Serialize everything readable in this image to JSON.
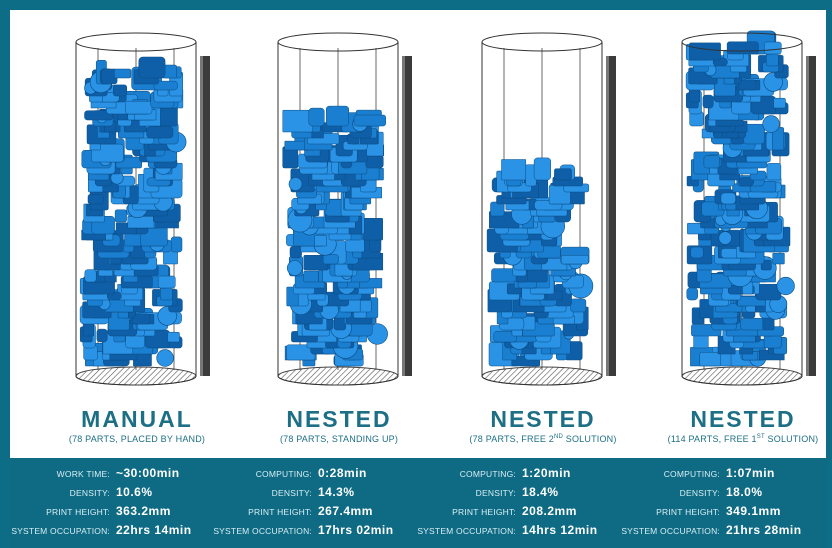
{
  "columns": [
    {
      "title": "MANUAL",
      "subtitle_main": "(78 PARTS, PLACED BY HAND)",
      "subtitle_sup": "",
      "subtitle_tail": "",
      "fill_level": 0.9,
      "stats": [
        {
          "label": "WORK TIME:",
          "value": "~30:00min"
        },
        {
          "label": "DENSITY:",
          "value": "10.6%"
        },
        {
          "label": "PRINT HEIGHT:",
          "value": "363.2mm"
        },
        {
          "label": "SYSTEM OCCUPATION:",
          "value": "22hrs 14min"
        }
      ]
    },
    {
      "title": "NESTED",
      "subtitle_main": "(78 PARTS, STANDING UP)",
      "subtitle_sup": "",
      "subtitle_tail": "",
      "fill_level": 0.76,
      "stats": [
        {
          "label": "COMPUTING:",
          "value": "0:28min"
        },
        {
          "label": "DENSITY:",
          "value": "14.3%"
        },
        {
          "label": "PRINT HEIGHT:",
          "value": "267.4mm"
        },
        {
          "label": "SYSTEM OCCUPATION:",
          "value": "17hrs 02min"
        }
      ]
    },
    {
      "title": "NESTED",
      "subtitle_main": "(78 PARTS, FREE 2",
      "subtitle_sup": "ND",
      "subtitle_tail": " SOLUTION)",
      "fill_level": 0.6,
      "stats": [
        {
          "label": "COMPUTING:",
          "value": "1:20min"
        },
        {
          "label": "DENSITY:",
          "value": "18.4%"
        },
        {
          "label": "PRINT HEIGHT:",
          "value": "208.2mm"
        },
        {
          "label": "SYSTEM OCCUPATION:",
          "value": "14hrs 12min"
        }
      ]
    },
    {
      "title": "NESTED",
      "subtitle_main": "(114 PARTS, FREE 1",
      "subtitle_sup": "ST",
      "subtitle_tail": " SOLUTION)",
      "fill_level": 0.98,
      "stats": [
        {
          "label": "COMPUTING:",
          "value": "1:07min"
        },
        {
          "label": "DENSITY:",
          "value": "18.0%"
        },
        {
          "label": "PRINT HEIGHT:",
          "value": "349.1mm"
        },
        {
          "label": "SYSTEM OCCUPATION:",
          "value": "21hrs 28min"
        }
      ]
    }
  ],
  "colors": {
    "frame": "#0d6d86",
    "parts": "#1a7fd0",
    "title": "#1d6f86",
    "stats_bg": "#0f6b84"
  }
}
